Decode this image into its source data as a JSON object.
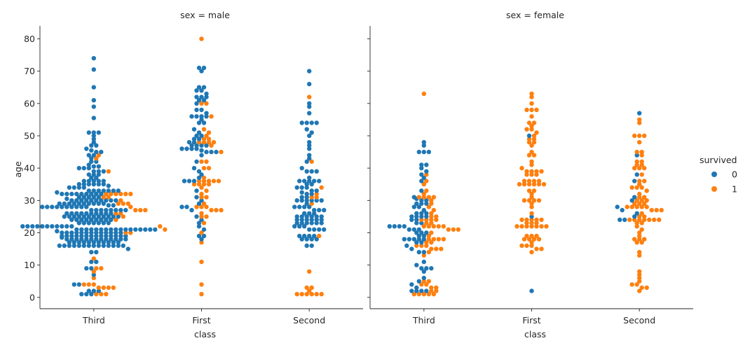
{
  "chart_data": {
    "type": "scatter",
    "subtype": "swarm",
    "x_label": "class",
    "y_label": "age",
    "categories": [
      "Third",
      "First",
      "Second"
    ],
    "ylim": [
      -3.5,
      84
    ],
    "yticks": [
      0,
      10,
      20,
      30,
      40,
      50,
      60,
      70,
      80
    ],
    "grid": false,
    "legend": {
      "title": "survived",
      "position": "right",
      "entries": [
        {
          "label": "0",
          "color": "#1f77b4"
        },
        {
          "label": "1",
          "color": "#ff7f0e"
        }
      ]
    },
    "panels": [
      {
        "title": "sex = male",
        "series": [
          {
            "name": "0",
            "points": {
              "Third": [
                74,
                70.5,
                65,
                61,
                59,
                55.5,
                51,
                51,
                51,
                50,
                49,
                48,
                47,
                47,
                46,
                45.5,
                45,
                45,
                44,
                44,
                43,
                42,
                42,
                41,
                40.5,
                40.5,
                40,
                40,
                40,
                39,
                39,
                39,
                38,
                38,
                38,
                37,
                37,
                36,
                36,
                36,
                36,
                36,
                35,
                35,
                35,
                35,
                35,
                35,
                34.5,
                34,
                34,
                34,
                34,
                33,
                33,
                33,
                33,
                33,
                33,
                33,
                32.5,
                32,
                32,
                32,
                32,
                32,
                32,
                32,
                32,
                32,
                31,
                31,
                31,
                31,
                31,
                30.5,
                30,
                30,
                30,
                30,
                30,
                30,
                30,
                30,
                30,
                30,
                29,
                29,
                29,
                29,
                29,
                29,
                29,
                29,
                29,
                29,
                28.5,
                28.5,
                28,
                28,
                28,
                28,
                28,
                28,
                28,
                28,
                28,
                28,
                27,
                27,
                27,
                27,
                27,
                27,
                27,
                27,
                26,
                26,
                26,
                26,
                26,
                26,
                26,
                26,
                26,
                26,
                25,
                25,
                25,
                25,
                25,
                25,
                25,
                25,
                25,
                25,
                25,
                25,
                24,
                24,
                24,
                24,
                24,
                24,
                24,
                24,
                24,
                23,
                23,
                23,
                23,
                23,
                23,
                23,
                22,
                22,
                22,
                22,
                22,
                22,
                22,
                22,
                22,
                22,
                22,
                21,
                21,
                21,
                21,
                21,
                21,
                21,
                21,
                21,
                21,
                21,
                21,
                21,
                21,
                21,
                21,
                21,
                20.5,
                20,
                20,
                20,
                20,
                20,
                20,
                20,
                20,
                20,
                20,
                20,
                20,
                20,
                19,
                19,
                19,
                19,
                19,
                19,
                19,
                19,
                19,
                19,
                19,
                19,
                19,
                19,
                18.5,
                18,
                18,
                18,
                18,
                18,
                18,
                18,
                18,
                18,
                18,
                18,
                18,
                18,
                17,
                17,
                17,
                17,
                17,
                17,
                17,
                17,
                17,
                17,
                17,
                16,
                16,
                16,
                16,
                16,
                16,
                16,
                16,
                16,
                16,
                16,
                16,
                16,
                16,
                15,
                14,
                14,
                11,
                11,
                9,
                9,
                7,
                4,
                4,
                2,
                2,
                2,
                1,
                1,
                1
              ],
              "First": [
                71,
                71,
                70,
                65,
                65,
                64,
                64,
                63,
                62,
                62,
                62,
                61,
                61,
                60,
                58,
                58,
                57,
                56,
                56,
                56,
                56,
                55,
                54,
                54,
                52,
                51,
                50,
                50,
                49,
                49,
                48,
                48,
                47,
                47,
                47,
                47,
                46,
                46,
                46,
                46,
                45.5,
                45,
                45,
                45,
                44,
                42,
                40,
                39,
                38,
                37,
                36,
                36,
                36,
                33,
                31,
                30,
                29,
                28,
                28,
                27,
                25,
                24,
                23,
                22,
                21,
                19,
                19,
                18
              ],
              "Second": [
                70,
                66,
                60,
                59,
                57,
                54,
                54,
                54,
                54,
                52,
                51,
                50,
                48,
                47,
                46,
                44,
                43,
                42,
                40,
                39,
                39,
                39,
                37,
                36,
                36,
                36,
                36,
                36,
                35,
                35,
                34,
                34,
                34,
                33,
                33,
                32.5,
                32,
                32,
                31,
                31,
                30,
                30,
                30,
                30,
                30,
                30,
                29,
                28,
                28,
                28,
                28,
                27,
                27,
                27,
                26,
                26,
                26,
                25,
                25,
                25,
                25,
                25,
                25,
                24,
                24,
                24,
                24,
                24,
                24,
                23,
                23,
                23,
                23,
                23,
                23,
                22,
                22,
                22,
                21,
                21,
                21,
                21,
                19,
                19,
                19,
                19,
                18,
                18,
                18,
                18,
                16,
                16
              ]
            }
          },
          {
            "name": "1",
            "points": {
              "Third": [
                44,
                43,
                39,
                32,
                32,
                32,
                32,
                32,
                32,
                31,
                31,
                30,
                29,
                29,
                29,
                28,
                27,
                27,
                27,
                26,
                26,
                25,
                24,
                22,
                21,
                20,
                20,
                12,
                9,
                9,
                8,
                6,
                4,
                4,
                4,
                3,
                3,
                3,
                3,
                1,
                1,
                1
              ],
              "First": [
                80,
                60,
                60,
                56,
                52,
                51,
                50,
                49,
                49,
                48,
                48,
                48,
                48,
                47,
                45,
                42,
                42,
                40,
                40,
                37,
                36,
                36,
                36,
                36,
                36,
                35,
                35,
                35,
                35,
                34,
                33,
                32,
                31,
                31,
                29,
                28,
                28,
                28,
                27,
                27,
                27,
                26,
                25,
                25,
                23,
                20,
                17,
                11,
                4,
                1
              ],
              "Second": [
                62,
                42,
                34,
                32,
                31,
                31,
                29,
                19,
                8,
                3,
                3,
                2,
                1,
                1,
                1,
                1,
                1,
                1
              ]
            }
          }
        ]
      },
      {
        "title": "sex = female",
        "series": [
          {
            "name": "0",
            "points": {
              "Third": [
                48,
                47,
                45,
                45,
                45,
                41,
                41,
                40,
                39,
                38,
                37,
                36,
                33,
                31,
                30.5,
                30,
                30,
                29,
                29,
                29,
                28,
                28,
                27,
                26,
                26,
                26,
                25,
                25,
                25,
                25,
                24,
                24,
                23,
                23,
                22,
                22,
                22,
                22,
                21,
                21,
                21,
                20,
                20,
                20,
                19,
                19,
                18,
                18,
                18,
                18,
                18,
                17,
                17,
                16,
                15,
                14,
                14,
                11,
                10,
                9,
                9,
                9,
                8,
                6,
                5,
                4,
                3,
                2,
                2,
                2,
                2
              ],
              "First": [
                50,
                25,
                2
              ],
              "Second": [
                57,
                44,
                38,
                36,
                31,
                30,
                28,
                27,
                26,
                25,
                24,
                24
              ]
            }
          },
          {
            "name": "1",
            "points": {
              "Third": [
                63,
                38,
                36,
                35,
                33,
                32,
                31,
                31,
                31,
                31,
                30,
                29,
                28,
                27,
                26,
                25,
                25,
                24,
                24,
                24,
                24,
                23,
                23,
                22,
                22,
                22,
                22,
                22,
                21,
                21,
                21,
                20,
                19,
                18,
                18,
                18,
                18,
                17,
                17,
                16,
                16,
                16,
                15,
                15,
                15,
                14,
                13,
                5,
                5,
                4,
                4,
                3,
                3,
                2,
                2,
                1,
                1,
                1,
                1,
                1
              ],
              "First": [
                63,
                62,
                60,
                58,
                58,
                58,
                56,
                54,
                54,
                53,
                52,
                52,
                51,
                50,
                49,
                49,
                48,
                48,
                47,
                45,
                44,
                44,
                42,
                41,
                40,
                39,
                39,
                39,
                39,
                38,
                38,
                38,
                36,
                36,
                36,
                36,
                35,
                35,
                35,
                35,
                35,
                35,
                33,
                33,
                32,
                31,
                30,
                30,
                30,
                30,
                29,
                28,
                26,
                24,
                24,
                24,
                24,
                24,
                23,
                23,
                23,
                22,
                22,
                22,
                22,
                22,
                22,
                22,
                19,
                19,
                19,
                18,
                18,
                18,
                18,
                17,
                16,
                16,
                16,
                15,
                15,
                14
              ],
              "Second": [
                55,
                54,
                50,
                50,
                50,
                48,
                45,
                45,
                44,
                42,
                42,
                41,
                41,
                40,
                40,
                40,
                38,
                36,
                36,
                35,
                34,
                34,
                34,
                33,
                32,
                31,
                31,
                30,
                30,
                30,
                29,
                29,
                29,
                28,
                28,
                28,
                28,
                28,
                27,
                27,
                27,
                26,
                25,
                25,
                24,
                24,
                24,
                24,
                24,
                24,
                24,
                23,
                23,
                22,
                21,
                20,
                19,
                18,
                18,
                18,
                17,
                17,
                14,
                13,
                8,
                7,
                6,
                5,
                4,
                4,
                3,
                3,
                2
              ]
            }
          }
        ]
      }
    ]
  }
}
